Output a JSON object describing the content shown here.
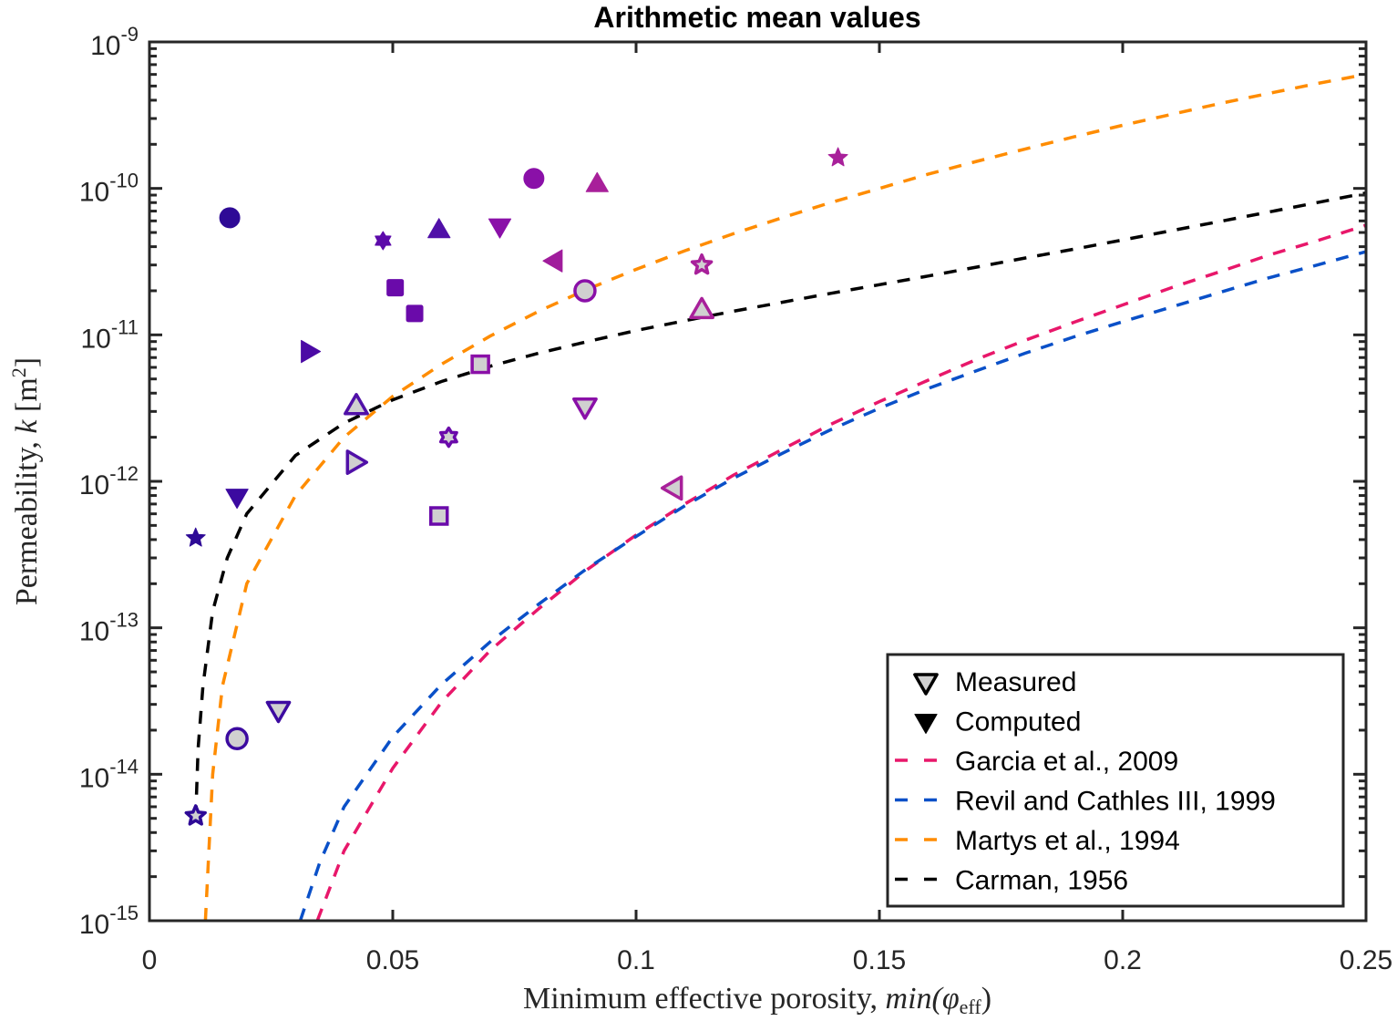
{
  "chart_data": {
    "type": "scatter",
    "title": "Arithmetic mean values",
    "xlabel": "Minimum effective porosity, min(φ_eff)",
    "xlabel_parts": {
      "text": "Minimum effective porosity, ",
      "math": "min(",
      "phi": "φ",
      "sub": "eff",
      "close": ")"
    },
    "ylabel": "Permeability, k [m^2]",
    "ylabel_parts": {
      "text": "Permeability, ",
      "math": "k",
      "unit_open": " [m",
      "unit_sup": "2",
      "unit_close": "]"
    },
    "xlim": [
      0,
      0.25
    ],
    "ylim_log10": [
      -15,
      -9
    ],
    "yscale": "log",
    "grid": false,
    "legend_position": "bottom-right",
    "x_ticks": [
      {
        "value": 0,
        "label": "0"
      },
      {
        "value": 0.05,
        "label": "0.05"
      },
      {
        "value": 0.1,
        "label": "0.1"
      },
      {
        "value": 0.15,
        "label": "0.15"
      },
      {
        "value": 0.2,
        "label": "0.2"
      },
      {
        "value": 0.25,
        "label": "0.25"
      }
    ],
    "y_ticks": [
      {
        "exp": -15,
        "base": "10",
        "sup": "-15"
      },
      {
        "exp": -14,
        "base": "10",
        "sup": "-14"
      },
      {
        "exp": -13,
        "base": "10",
        "sup": "-13"
      },
      {
        "exp": -12,
        "base": "10",
        "sup": "-12"
      },
      {
        "exp": -11,
        "base": "10",
        "sup": "-11"
      },
      {
        "exp": -10,
        "base": "10",
        "sup": "-10"
      },
      {
        "exp": -9,
        "base": "10",
        "sup": "-9"
      }
    ],
    "legend": [
      {
        "label": "Measured",
        "kind": "marker-open",
        "color": "#000000"
      },
      {
        "label": "Computed",
        "kind": "marker-filled",
        "color": "#000000"
      },
      {
        "label": "Garcia et al., 2009",
        "kind": "dashed-line",
        "color": "#e8176a"
      },
      {
        "label": "Revil and Cathles III, 1999",
        "kind": "dashed-line",
        "color": "#0a50c8"
      },
      {
        "label": "Martys et al., 1994",
        "kind": "dashed-line",
        "color": "#ff8c00"
      },
      {
        "label": "Carman, 1956",
        "kind": "dashed-line",
        "color": "#000000"
      }
    ],
    "models": [
      {
        "name": "Garcia et al., 2009",
        "color": "#e8176a",
        "points": [
          [
            0.0345,
            1e-15
          ],
          [
            0.04,
            3e-15
          ],
          [
            0.05,
            1.1e-14
          ],
          [
            0.06,
            3.1e-14
          ],
          [
            0.07,
            7e-14
          ],
          [
            0.08,
            1.35e-13
          ],
          [
            0.09,
            2.5e-13
          ],
          [
            0.1,
            4.3e-13
          ],
          [
            0.11,
            7e-13
          ],
          [
            0.12,
            1.1e-12
          ],
          [
            0.13,
            1.65e-12
          ],
          [
            0.14,
            2.45e-12
          ],
          [
            0.15,
            3.5e-12
          ],
          [
            0.16,
            4.9e-12
          ],
          [
            0.17,
            6.8e-12
          ],
          [
            0.18,
            9.2e-12
          ],
          [
            0.19,
            1.22e-11
          ],
          [
            0.2,
            1.6e-11
          ],
          [
            0.21,
            2.1e-11
          ],
          [
            0.22,
            2.7e-11
          ],
          [
            0.23,
            3.5e-11
          ],
          [
            0.24,
            4.4e-11
          ],
          [
            0.25,
            5.6e-11
          ]
        ]
      },
      {
        "name": "Revil and Cathles III, 1999",
        "color": "#0a50c8",
        "points": [
          [
            0.031,
            1e-15
          ],
          [
            0.035,
            2.5e-15
          ],
          [
            0.04,
            6e-15
          ],
          [
            0.05,
            1.8e-14
          ],
          [
            0.06,
            4.1e-14
          ],
          [
            0.07,
            8e-14
          ],
          [
            0.08,
            1.45e-13
          ],
          [
            0.09,
            2.55e-13
          ],
          [
            0.1,
            4.2e-13
          ],
          [
            0.11,
            6.8e-13
          ],
          [
            0.12,
            1.05e-12
          ],
          [
            0.13,
            1.55e-12
          ],
          [
            0.14,
            2.25e-12
          ],
          [
            0.15,
            3.15e-12
          ],
          [
            0.16,
            4.3e-12
          ],
          [
            0.17,
            5.7e-12
          ],
          [
            0.18,
            7.5e-12
          ],
          [
            0.19,
            9.7e-12
          ],
          [
            0.2,
            1.23e-11
          ],
          [
            0.21,
            1.55e-11
          ],
          [
            0.22,
            1.95e-11
          ],
          [
            0.23,
            2.45e-11
          ],
          [
            0.24,
            3e-11
          ],
          [
            0.25,
            3.7e-11
          ]
        ]
      },
      {
        "name": "Martys et al., 1994",
        "color": "#ff8c00",
        "points": [
          [
            0.0115,
            1e-15
          ],
          [
            0.013,
            1e-14
          ],
          [
            0.015,
            4e-14
          ],
          [
            0.02,
            2e-13
          ],
          [
            0.03,
            8e-13
          ],
          [
            0.04,
            2e-12
          ],
          [
            0.05,
            3.8e-12
          ],
          [
            0.06,
            6.3e-12
          ],
          [
            0.07,
            9.8e-12
          ],
          [
            0.08,
            1.45e-11
          ],
          [
            0.09,
            2.05e-11
          ],
          [
            0.1,
            2.8e-11
          ],
          [
            0.11,
            3.75e-11
          ],
          [
            0.12,
            4.9e-11
          ],
          [
            0.13,
            6.3e-11
          ],
          [
            0.14,
            8e-11
          ],
          [
            0.15,
            1e-10
          ],
          [
            0.16,
            1.25e-10
          ],
          [
            0.17,
            1.53e-10
          ],
          [
            0.18,
            1.86e-10
          ],
          [
            0.19,
            2.25e-10
          ],
          [
            0.2,
            2.7e-10
          ],
          [
            0.21,
            3.2e-10
          ],
          [
            0.22,
            3.8e-10
          ],
          [
            0.23,
            4.45e-10
          ],
          [
            0.24,
            5.2e-10
          ],
          [
            0.25,
            6e-10
          ]
        ]
      },
      {
        "name": "Carman, 1956",
        "color": "#000000",
        "points": [
          [
            0.0095,
            5e-15
          ],
          [
            0.01,
            1.5e-14
          ],
          [
            0.011,
            4e-14
          ],
          [
            0.013,
            1.3e-13
          ],
          [
            0.016,
            3e-13
          ],
          [
            0.02,
            6e-13
          ],
          [
            0.03,
            1.5e-12
          ],
          [
            0.04,
            2.5e-12
          ],
          [
            0.05,
            3.6e-12
          ],
          [
            0.06,
            4.8e-12
          ],
          [
            0.07,
            6.1e-12
          ],
          [
            0.08,
            7.5e-12
          ],
          [
            0.09,
            9e-12
          ],
          [
            0.1,
            1.07e-11
          ],
          [
            0.11,
            1.25e-11
          ],
          [
            0.12,
            1.45e-11
          ],
          [
            0.13,
            1.67e-11
          ],
          [
            0.14,
            1.92e-11
          ],
          [
            0.15,
            2.2e-11
          ],
          [
            0.16,
            2.52e-11
          ],
          [
            0.17,
            2.9e-11
          ],
          [
            0.18,
            3.35e-11
          ],
          [
            0.19,
            3.85e-11
          ],
          [
            0.2,
            4.45e-11
          ],
          [
            0.21,
            5.15e-11
          ],
          [
            0.22,
            5.95e-11
          ],
          [
            0.23,
            6.9e-11
          ],
          [
            0.24,
            8e-11
          ],
          [
            0.25,
            9.3e-11
          ]
        ]
      }
    ],
    "series": [
      {
        "name": "Computed",
        "filled": true,
        "points": [
          {
            "x": 0.0165,
            "y": 6.3e-11,
            "marker": "circle",
            "color": "#2e0a96"
          },
          {
            "x": 0.0095,
            "y": 4.1e-13,
            "marker": "pentagram",
            "color": "#2e0a96"
          },
          {
            "x": 0.018,
            "y": 8e-13,
            "marker": "triangle-down",
            "color": "#3c0aa0"
          },
          {
            "x": 0.0325,
            "y": 7.7e-12,
            "marker": "triangle-right",
            "color": "#4b0aa5"
          },
          {
            "x": 0.048,
            "y": 4.4e-11,
            "marker": "hexagram",
            "color": "#5c0aaa"
          },
          {
            "x": 0.0505,
            "y": 2.1e-11,
            "marker": "square",
            "color": "#6a0aaa"
          },
          {
            "x": 0.0545,
            "y": 1.4e-11,
            "marker": "square",
            "color": "#6a0aaa"
          },
          {
            "x": 0.0595,
            "y": 5.1e-11,
            "marker": "triangle-up",
            "color": "#5010a8"
          },
          {
            "x": 0.072,
            "y": 5.6e-11,
            "marker": "triangle-down",
            "color": "#8a10a8"
          },
          {
            "x": 0.079,
            "y": 1.17e-10,
            "marker": "circle",
            "color": "#8a10a8"
          },
          {
            "x": 0.0835,
            "y": 3.2e-11,
            "marker": "triangle-left",
            "color": "#a01c9c"
          },
          {
            "x": 0.092,
            "y": 1.05e-10,
            "marker": "triangle-up",
            "color": "#a8209a"
          },
          {
            "x": 0.1415,
            "y": 1.62e-10,
            "marker": "pentagram",
            "color": "#a8209a"
          }
        ]
      },
      {
        "name": "Measured",
        "filled": false,
        "fill": "#d0d0d0",
        "points": [
          {
            "x": 0.0095,
            "y": 5.2e-15,
            "marker": "pentagram",
            "color": "#2e0a96"
          },
          {
            "x": 0.018,
            "y": 1.75e-14,
            "marker": "circle",
            "color": "#3c0aa0"
          },
          {
            "x": 0.0265,
            "y": 2.8e-14,
            "marker": "triangle-down",
            "color": "#3c0aa0"
          },
          {
            "x": 0.042,
            "y": 1.35e-12,
            "marker": "triangle-right",
            "color": "#5010a8"
          },
          {
            "x": 0.0425,
            "y": 3.2e-12,
            "marker": "triangle-up",
            "color": "#5010a8"
          },
          {
            "x": 0.0595,
            "y": 5.8e-13,
            "marker": "square",
            "color": "#6a0aaa"
          },
          {
            "x": 0.0615,
            "y": 2e-12,
            "marker": "hexagram",
            "color": "#6a0aaa"
          },
          {
            "x": 0.068,
            "y": 6.3e-12,
            "marker": "square",
            "color": "#8a10a8"
          },
          {
            "x": 0.0895,
            "y": 2e-11,
            "marker": "circle",
            "color": "#8a10a8"
          },
          {
            "x": 0.0895,
            "y": 3.3e-12,
            "marker": "triangle-down",
            "color": "#8a10a8"
          },
          {
            "x": 0.108,
            "y": 9e-13,
            "marker": "triangle-left",
            "color": "#a8209a"
          },
          {
            "x": 0.1135,
            "y": 1.45e-11,
            "marker": "triangle-up",
            "color": "#a8209a"
          },
          {
            "x": 0.1135,
            "y": 3e-11,
            "marker": "pentagram",
            "color": "#a8209a"
          }
        ]
      }
    ]
  }
}
